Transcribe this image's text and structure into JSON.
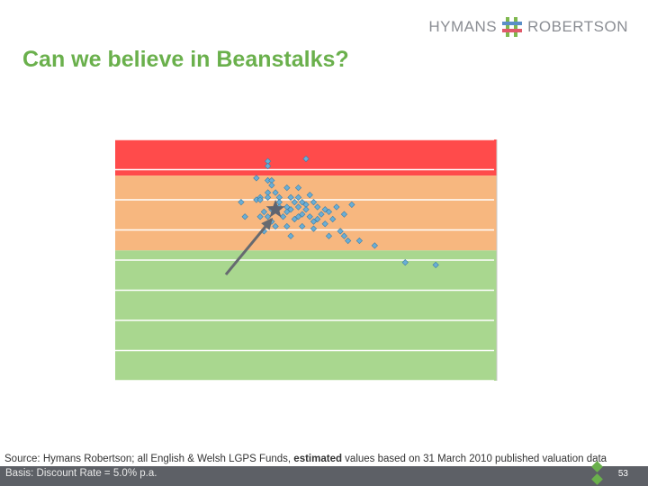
{
  "header": {
    "logo_left": "HYMANS",
    "logo_right": "ROBERTSON"
  },
  "slide": {
    "title": "Can we believe in Beanstalks?",
    "source_prefix": "Source: Hymans Robertson; all English & Welsh LGPS Funds, ",
    "source_bold": "estimated",
    "source_suffix": " values based on 31 March 2010 published valuation data",
    "basis": "Basis: Discount Rate = 5.0% p.a.",
    "page_number": "53"
  },
  "colors": {
    "title": "#6ab04c",
    "band_red": "#ff4b4b",
    "band_orange": "#f7b77f",
    "band_green": "#a9d78f",
    "point": "#6aaed6",
    "star": "#5f6470",
    "arrow": "#666a70"
  },
  "chart_data": {
    "type": "scatter",
    "title": "",
    "xlabel": "",
    "ylabel": "",
    "xlim": [
      0,
      100
    ],
    "ylim": [
      0,
      100
    ],
    "grid": true,
    "bands": [
      {
        "color": "red",
        "y_from": 85,
        "y_to": 100
      },
      {
        "color": "orange",
        "y_from": 54,
        "y_to": 85
      },
      {
        "color": "green",
        "y_from": 0,
        "y_to": 54
      }
    ],
    "points": [
      {
        "x": 50,
        "y": 92
      },
      {
        "x": 40,
        "y": 91
      },
      {
        "x": 40,
        "y": 89
      },
      {
        "x": 40,
        "y": 83
      },
      {
        "x": 41,
        "y": 83
      },
      {
        "x": 37,
        "y": 84
      },
      {
        "x": 41,
        "y": 81
      },
      {
        "x": 45,
        "y": 80
      },
      {
        "x": 48,
        "y": 80
      },
      {
        "x": 48,
        "y": 76
      },
      {
        "x": 40,
        "y": 78
      },
      {
        "x": 42,
        "y": 78
      },
      {
        "x": 38,
        "y": 76
      },
      {
        "x": 40,
        "y": 76
      },
      {
        "x": 43,
        "y": 76
      },
      {
        "x": 46,
        "y": 76
      },
      {
        "x": 51,
        "y": 77
      },
      {
        "x": 52,
        "y": 74
      },
      {
        "x": 33,
        "y": 74
      },
      {
        "x": 37,
        "y": 75
      },
      {
        "x": 38,
        "y": 75
      },
      {
        "x": 43,
        "y": 74
      },
      {
        "x": 47,
        "y": 74
      },
      {
        "x": 49,
        "y": 74
      },
      {
        "x": 50,
        "y": 73
      },
      {
        "x": 43,
        "y": 72
      },
      {
        "x": 45,
        "y": 72
      },
      {
        "x": 45,
        "y": 70
      },
      {
        "x": 46,
        "y": 71
      },
      {
        "x": 48,
        "y": 72
      },
      {
        "x": 50,
        "y": 71
      },
      {
        "x": 53,
        "y": 72
      },
      {
        "x": 55,
        "y": 71
      },
      {
        "x": 56,
        "y": 70
      },
      {
        "x": 58,
        "y": 72
      },
      {
        "x": 62,
        "y": 73
      },
      {
        "x": 41,
        "y": 71
      },
      {
        "x": 39,
        "y": 70
      },
      {
        "x": 40,
        "y": 68
      },
      {
        "x": 44,
        "y": 68
      },
      {
        "x": 48,
        "y": 68
      },
      {
        "x": 49,
        "y": 69
      },
      {
        "x": 51,
        "y": 68
      },
      {
        "x": 53,
        "y": 67
      },
      {
        "x": 54,
        "y": 69
      },
      {
        "x": 52,
        "y": 66
      },
      {
        "x": 57,
        "y": 67
      },
      {
        "x": 60,
        "y": 69
      },
      {
        "x": 41,
        "y": 66
      },
      {
        "x": 45,
        "y": 64
      },
      {
        "x": 49,
        "y": 64
      },
      {
        "x": 52,
        "y": 63
      },
      {
        "x": 39,
        "y": 62
      },
      {
        "x": 46,
        "y": 60
      },
      {
        "x": 56,
        "y": 60
      },
      {
        "x": 59,
        "y": 62
      },
      {
        "x": 60,
        "y": 60
      },
      {
        "x": 61,
        "y": 58
      },
      {
        "x": 64,
        "y": 58
      },
      {
        "x": 68,
        "y": 56
      },
      {
        "x": 76,
        "y": 49
      },
      {
        "x": 84,
        "y": 48
      },
      {
        "x": 34,
        "y": 68
      },
      {
        "x": 38,
        "y": 68
      },
      {
        "x": 47,
        "y": 67
      },
      {
        "x": 55,
        "y": 65
      },
      {
        "x": 42,
        "y": 64
      }
    ],
    "highlight": {
      "marker": "star",
      "x": 42,
      "y": 71
    },
    "arrow": {
      "from": {
        "x": 29,
        "y": 44
      },
      "to": {
        "x": 41,
        "y": 67
      }
    }
  }
}
